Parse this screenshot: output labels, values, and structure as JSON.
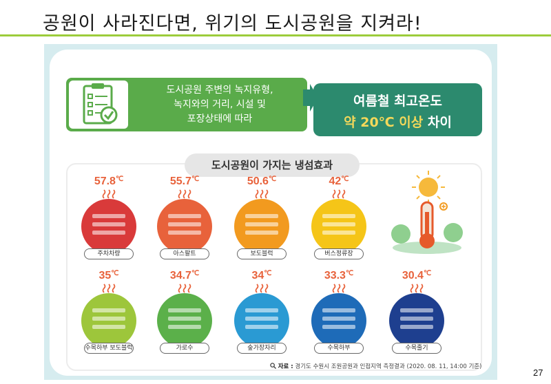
{
  "slide": {
    "title": "공원이 사라진다면, 위기의 도시공원을 지켜라!",
    "page_number": "27"
  },
  "top": {
    "criteria_lines": [
      "도시공원 주변의 녹지유형,",
      "녹지와의 거리, 시설 및",
      "포장상태에 따라"
    ],
    "result_line1": "여름철 최고온도",
    "result_highlight": "약 20℃ 이상",
    "result_suffix": " 차이"
  },
  "cooling": {
    "heading": "도시공원이 가지는 냉섬효과",
    "sites": [
      {
        "temp": "57.8",
        "unit": "℃",
        "label": "주차차량",
        "color": "#d93a3a"
      },
      {
        "temp": "55.7",
        "unit": "℃",
        "label": "아스팔트",
        "color": "#e8623b"
      },
      {
        "temp": "50.6",
        "unit": "℃",
        "label": "보도블럭",
        "color": "#f29a1f"
      },
      {
        "temp": "42",
        "unit": "℃",
        "label": "버스정류장",
        "color": "#f5c518"
      },
      {
        "temp": "35",
        "unit": "℃",
        "label": "수목하부 보도블럭",
        "color": "#9dc63b"
      },
      {
        "temp": "34.7",
        "unit": "℃",
        "label": "가로수",
        "color": "#5bb04a"
      },
      {
        "temp": "34",
        "unit": "℃",
        "label": "숲가장자리",
        "color": "#2a9ad3"
      },
      {
        "temp": "33.3",
        "unit": "℃",
        "label": "수목하부",
        "color": "#1e6bb8"
      },
      {
        "temp": "30.4",
        "unit": "℃",
        "label": "수목줄기",
        "color": "#1e3f8f"
      }
    ]
  },
  "source": {
    "label": "자료 :",
    "text": "경기도 수원시 조원공원과 인접지역 측정결과 (2020. 08. 11, 14:00 기준)"
  },
  "colors": {
    "accent_green": "#9ccc3a",
    "box_green": "#5aab4a",
    "box_teal": "#2c8a6e",
    "highlight": "#f4d85a",
    "frame_bg": "#d6ecef"
  },
  "icons": [
    "clipboard-checklist-icon",
    "arrow-right-icon",
    "heat-wave-icon",
    "thermometer-sun-icon",
    "search-icon"
  ]
}
